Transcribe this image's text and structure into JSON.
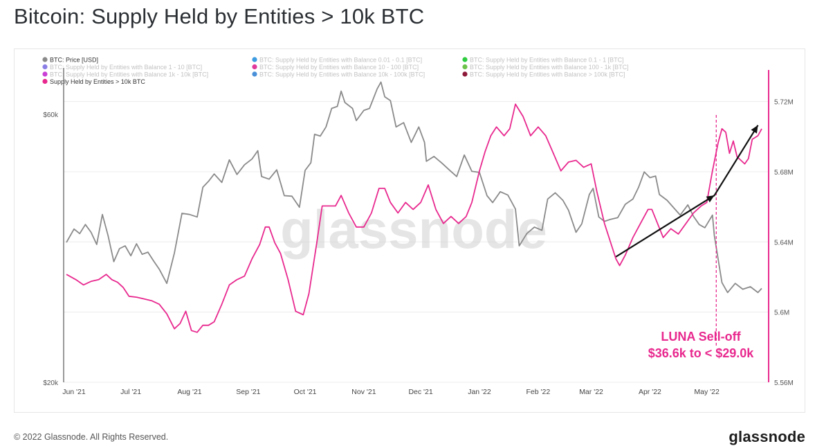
{
  "header": {
    "title": "Bitcoin: Supply Held by Entities > 10k BTC"
  },
  "footer": {
    "copyright": "© 2022 Glassnode. All Rights Reserved.",
    "brand": "glassnode"
  },
  "chart_data": {
    "type": "line",
    "watermark": "glassnode",
    "x_ticks": [
      "Jun '21",
      "Jul '21",
      "Aug '21",
      "Sep '21",
      "Oct '21",
      "Nov '21",
      "Dec '21",
      "Jan '22",
      "Feb '22",
      "Mar '22",
      "Apr '22",
      "May '22"
    ],
    "x_range": [
      "2021-05-28",
      "2022-05-30"
    ],
    "y_left": {
      "ticks": [
        {
          "value": 60000,
          "label": "$60k"
        },
        {
          "value": 20000,
          "label": "$20k"
        }
      ],
      "scale": "log",
      "range": [
        20000,
        72000
      ]
    },
    "y_right": {
      "ticks": [
        {
          "value": 5.56,
          "label": "5.56M"
        },
        {
          "value": 5.6,
          "label": "5.6M"
        },
        {
          "value": 5.64,
          "label": "5.64M"
        },
        {
          "value": 5.68,
          "label": "5.68M"
        },
        {
          "value": 5.72,
          "label": "5.72M"
        }
      ],
      "range": [
        5.56,
        5.738
      ]
    },
    "grid": true,
    "legend_position": "top-left",
    "legend": [
      {
        "label": "BTC: Price [USD]",
        "color": "#8a8a8a",
        "active": true
      },
      {
        "label": "BTC: Supply Held by Entities with Balance 0.01 - 0.1 [BTC]",
        "color": "#3d9be0",
        "active": false
      },
      {
        "label": "BTC: Supply Held by Entities with Balance 0.1 - 1 [BTC]",
        "color": "#2ecc40",
        "active": false
      },
      {
        "label": "BTC: Supply Held by Entities with Balance 1 - 10 [BTC]",
        "color": "#8b7fe6",
        "active": false
      },
      {
        "label": "BTC: Supply Held by Entities with Balance 10 - 100 [BTC]",
        "color": "#e0399b",
        "active": false
      },
      {
        "label": "BTC: Supply Held by Entities with Balance 100 - 1k [BTC]",
        "color": "#6cc24a",
        "active": false
      },
      {
        "label": "BTC: Supply Held by Entities with Balance 1k - 10k [BTC]",
        "color": "#c940d6",
        "active": false
      },
      {
        "label": "BTC: Supply Held by Entities with Balance 10k - 100k [BTC]",
        "color": "#4a90d9",
        "active": false
      },
      {
        "label": "BTC: Supply Held by Entities with Balance > 100k [BTC]",
        "color": "#8e1a3a",
        "active": false
      },
      {
        "label": "Supply Held by Entities > 10k BTC",
        "color": "#e8288e",
        "active": true
      }
    ],
    "series": [
      {
        "name": "BTC: Price [USD]",
        "axis": "left",
        "color": "#8a8a8a",
        "points": [
          [
            "2021-05-28",
            35500
          ],
          [
            "2021-06-01",
            37500
          ],
          [
            "2021-06-04",
            36800
          ],
          [
            "2021-06-07",
            38200
          ],
          [
            "2021-06-10",
            37000
          ],
          [
            "2021-06-13",
            35200
          ],
          [
            "2021-06-16",
            39800
          ],
          [
            "2021-06-19",
            36500
          ],
          [
            "2021-06-22",
            32800
          ],
          [
            "2021-06-25",
            34600
          ],
          [
            "2021-06-28",
            35000
          ],
          [
            "2021-07-01",
            33600
          ],
          [
            "2021-07-04",
            35300
          ],
          [
            "2021-07-07",
            33800
          ],
          [
            "2021-07-10",
            34100
          ],
          [
            "2021-07-13",
            32900
          ],
          [
            "2021-07-16",
            31800
          ],
          [
            "2021-07-20",
            30000
          ],
          [
            "2021-07-24",
            34000
          ],
          [
            "2021-07-28",
            40000
          ],
          [
            "2021-08-01",
            39800
          ],
          [
            "2021-08-05",
            39400
          ],
          [
            "2021-08-08",
            44500
          ],
          [
            "2021-08-11",
            45600
          ],
          [
            "2021-08-14",
            47000
          ],
          [
            "2021-08-18",
            45400
          ],
          [
            "2021-08-22",
            49800
          ],
          [
            "2021-08-26",
            46900
          ],
          [
            "2021-08-30",
            48800
          ],
          [
            "2021-09-03",
            50000
          ],
          [
            "2021-09-06",
            51700
          ],
          [
            "2021-09-08",
            46500
          ],
          [
            "2021-09-12",
            46000
          ],
          [
            "2021-09-16",
            47800
          ],
          [
            "2021-09-20",
            43000
          ],
          [
            "2021-09-24",
            42900
          ],
          [
            "2021-09-28",
            41000
          ],
          [
            "2021-10-01",
            47700
          ],
          [
            "2021-10-04",
            49200
          ],
          [
            "2021-10-06",
            55300
          ],
          [
            "2021-10-09",
            54900
          ],
          [
            "2021-10-12",
            57000
          ],
          [
            "2021-10-15",
            61500
          ],
          [
            "2021-10-18",
            62000
          ],
          [
            "2021-10-20",
            66000
          ],
          [
            "2021-10-22",
            63000
          ],
          [
            "2021-10-26",
            61500
          ],
          [
            "2021-10-28",
            58500
          ],
          [
            "2021-11-01",
            61000
          ],
          [
            "2021-11-04",
            61500
          ],
          [
            "2021-11-08",
            66600
          ],
          [
            "2021-11-10",
            68500
          ],
          [
            "2021-11-12",
            64500
          ],
          [
            "2021-11-15",
            63500
          ],
          [
            "2021-11-18",
            57000
          ],
          [
            "2021-11-22",
            58000
          ],
          [
            "2021-11-26",
            53500
          ],
          [
            "2021-11-30",
            57000
          ],
          [
            "2021-12-03",
            53500
          ],
          [
            "2021-12-04",
            49500
          ],
          [
            "2021-12-08",
            50500
          ],
          [
            "2021-12-12",
            49200
          ],
          [
            "2021-12-16",
            47800
          ],
          [
            "2021-12-20",
            46500
          ],
          [
            "2021-12-24",
            50800
          ],
          [
            "2021-12-28",
            47500
          ],
          [
            "2022-01-01",
            47300
          ],
          [
            "2022-01-05",
            43000
          ],
          [
            "2022-01-08",
            41800
          ],
          [
            "2022-01-12",
            43700
          ],
          [
            "2022-01-16",
            43100
          ],
          [
            "2022-01-20",
            40700
          ],
          [
            "2022-01-22",
            35000
          ],
          [
            "2022-01-26",
            36800
          ],
          [
            "2022-01-30",
            37800
          ],
          [
            "2022-02-03",
            37300
          ],
          [
            "2022-02-06",
            42400
          ],
          [
            "2022-02-10",
            43500
          ],
          [
            "2022-02-14",
            42200
          ],
          [
            "2022-02-17",
            40500
          ],
          [
            "2022-02-21",
            37000
          ],
          [
            "2022-02-24",
            38300
          ],
          [
            "2022-02-28",
            43200
          ],
          [
            "2022-03-02",
            44300
          ],
          [
            "2022-03-05",
            39400
          ],
          [
            "2022-03-08",
            38700
          ],
          [
            "2022-03-11",
            39000
          ],
          [
            "2022-03-15",
            39300
          ],
          [
            "2022-03-19",
            41500
          ],
          [
            "2022-03-23",
            42400
          ],
          [
            "2022-03-26",
            44500
          ],
          [
            "2022-03-29",
            47400
          ],
          [
            "2022-04-01",
            46300
          ],
          [
            "2022-04-04",
            46600
          ],
          [
            "2022-04-06",
            43200
          ],
          [
            "2022-04-10",
            42200
          ],
          [
            "2022-04-13",
            41100
          ],
          [
            "2022-04-17",
            39700
          ],
          [
            "2022-04-21",
            41400
          ],
          [
            "2022-04-24",
            39500
          ],
          [
            "2022-04-27",
            38200
          ],
          [
            "2022-04-30",
            37700
          ],
          [
            "2022-05-04",
            39700
          ],
          [
            "2022-05-05",
            36500
          ],
          [
            "2022-05-09",
            30100
          ],
          [
            "2022-05-12",
            28900
          ],
          [
            "2022-05-16",
            30000
          ],
          [
            "2022-05-20",
            29300
          ],
          [
            "2022-05-24",
            29600
          ],
          [
            "2022-05-28",
            28900
          ],
          [
            "2022-05-30",
            29400
          ]
        ]
      },
      {
        "name": "Supply Held by Entities > 10k BTC",
        "axis": "right",
        "color": "#e8288e",
        "points": [
          [
            "2021-05-28",
            5.6215
          ],
          [
            "2021-06-02",
            5.6185
          ],
          [
            "2021-06-06",
            5.6155
          ],
          [
            "2021-06-10",
            5.6175
          ],
          [
            "2021-06-14",
            5.6185
          ],
          [
            "2021-06-18",
            5.6215
          ],
          [
            "2021-06-21",
            5.6185
          ],
          [
            "2021-06-24",
            5.617
          ],
          [
            "2021-06-27",
            5.614
          ],
          [
            "2021-06-30",
            5.609
          ],
          [
            "2021-07-04",
            5.6085
          ],
          [
            "2021-07-08",
            5.6075
          ],
          [
            "2021-07-12",
            5.6065
          ],
          [
            "2021-07-16",
            5.6045
          ],
          [
            "2021-07-20",
            5.599
          ],
          [
            "2021-07-24",
            5.5905
          ],
          [
            "2021-07-27",
            5.5935
          ],
          [
            "2021-07-30",
            5.6005
          ],
          [
            "2021-08-02",
            5.5895
          ],
          [
            "2021-08-05",
            5.5885
          ],
          [
            "2021-08-08",
            5.5925
          ],
          [
            "2021-08-11",
            5.5925
          ],
          [
            "2021-08-14",
            5.5945
          ],
          [
            "2021-08-18",
            5.6045
          ],
          [
            "2021-08-22",
            5.6155
          ],
          [
            "2021-08-26",
            5.6185
          ],
          [
            "2021-08-30",
            5.6205
          ],
          [
            "2021-09-03",
            5.6305
          ],
          [
            "2021-09-07",
            5.6385
          ],
          [
            "2021-09-10",
            5.6485
          ],
          [
            "2021-09-12",
            5.6485
          ],
          [
            "2021-09-15",
            5.6395
          ],
          [
            "2021-09-18",
            5.6335
          ],
          [
            "2021-09-22",
            5.6185
          ],
          [
            "2021-09-26",
            5.6005
          ],
          [
            "2021-09-30",
            5.5985
          ],
          [
            "2021-10-03",
            5.6105
          ],
          [
            "2021-10-07",
            5.6385
          ],
          [
            "2021-10-10",
            5.6605
          ],
          [
            "2021-10-13",
            5.6605
          ],
          [
            "2021-10-17",
            5.6605
          ],
          [
            "2021-10-20",
            5.6665
          ],
          [
            "2021-10-24",
            5.6565
          ],
          [
            "2021-10-28",
            5.6485
          ],
          [
            "2021-11-01",
            5.6485
          ],
          [
            "2021-11-05",
            5.6565
          ],
          [
            "2021-11-09",
            5.6705
          ],
          [
            "2021-11-12",
            5.6705
          ],
          [
            "2021-11-15",
            5.6625
          ],
          [
            "2021-11-19",
            5.6565
          ],
          [
            "2021-11-23",
            5.6625
          ],
          [
            "2021-11-27",
            5.6585
          ],
          [
            "2021-12-01",
            5.6625
          ],
          [
            "2021-12-05",
            5.6725
          ],
          [
            "2021-12-09",
            5.6585
          ],
          [
            "2021-12-13",
            5.6505
          ],
          [
            "2021-12-17",
            5.6545
          ],
          [
            "2021-12-21",
            5.6505
          ],
          [
            "2021-12-25",
            5.6545
          ],
          [
            "2021-12-28",
            5.6625
          ],
          [
            "2022-01-01",
            5.6805
          ],
          [
            "2022-01-04",
            5.6915
          ],
          [
            "2022-01-07",
            5.7005
          ],
          [
            "2022-01-10",
            5.7055
          ],
          [
            "2022-01-14",
            5.7005
          ],
          [
            "2022-01-17",
            5.7045
          ],
          [
            "2022-01-20",
            5.7185
          ],
          [
            "2022-01-24",
            5.7115
          ],
          [
            "2022-01-28",
            5.7005
          ],
          [
            "2022-02-01",
            5.7055
          ],
          [
            "2022-02-05",
            5.7005
          ],
          [
            "2022-02-09",
            5.6905
          ],
          [
            "2022-02-13",
            5.6805
          ],
          [
            "2022-02-17",
            5.6855
          ],
          [
            "2022-02-21",
            5.6865
          ],
          [
            "2022-02-25",
            5.6825
          ],
          [
            "2022-03-01",
            5.6845
          ],
          [
            "2022-03-04",
            5.6685
          ],
          [
            "2022-03-08",
            5.6505
          ],
          [
            "2022-03-11",
            5.6405
          ],
          [
            "2022-03-14",
            5.6305
          ],
          [
            "2022-03-16",
            5.6265
          ],
          [
            "2022-03-19",
            5.6325
          ],
          [
            "2022-03-23",
            5.6425
          ],
          [
            "2022-03-27",
            5.6505
          ],
          [
            "2022-03-31",
            5.6585
          ],
          [
            "2022-04-02",
            5.6585
          ],
          [
            "2022-04-05",
            5.6505
          ],
          [
            "2022-04-08",
            5.6425
          ],
          [
            "2022-04-12",
            5.6475
          ],
          [
            "2022-04-16",
            5.6445
          ],
          [
            "2022-04-20",
            5.6505
          ],
          [
            "2022-04-24",
            5.6565
          ],
          [
            "2022-04-28",
            5.6605
          ],
          [
            "2022-05-01",
            5.6625
          ],
          [
            "2022-05-04",
            5.6805
          ],
          [
            "2022-05-07",
            5.6965
          ],
          [
            "2022-05-09",
            5.7045
          ],
          [
            "2022-05-11",
            5.7025
          ],
          [
            "2022-05-13",
            5.6905
          ],
          [
            "2022-05-15",
            5.6975
          ],
          [
            "2022-05-17",
            5.6885
          ],
          [
            "2022-05-21",
            5.6845
          ],
          [
            "2022-05-23",
            5.6875
          ],
          [
            "2022-05-25",
            5.6985
          ],
          [
            "2022-05-28",
            5.7005
          ],
          [
            "2022-05-30",
            5.7045
          ]
        ]
      }
    ],
    "annotations": {
      "event_label_line1": "LUNA Sell-off",
      "event_label_line2": "$36.6k to < $29.0k",
      "event_date": "2022-05-06",
      "event_color": "#e8288e",
      "arrow_color": "#111111",
      "arrow_points": [
        [
          "2022-03-14",
          5.6315
        ],
        [
          "2022-05-05",
          5.6665
        ],
        [
          "2022-05-28",
          5.7065
        ]
      ]
    }
  }
}
